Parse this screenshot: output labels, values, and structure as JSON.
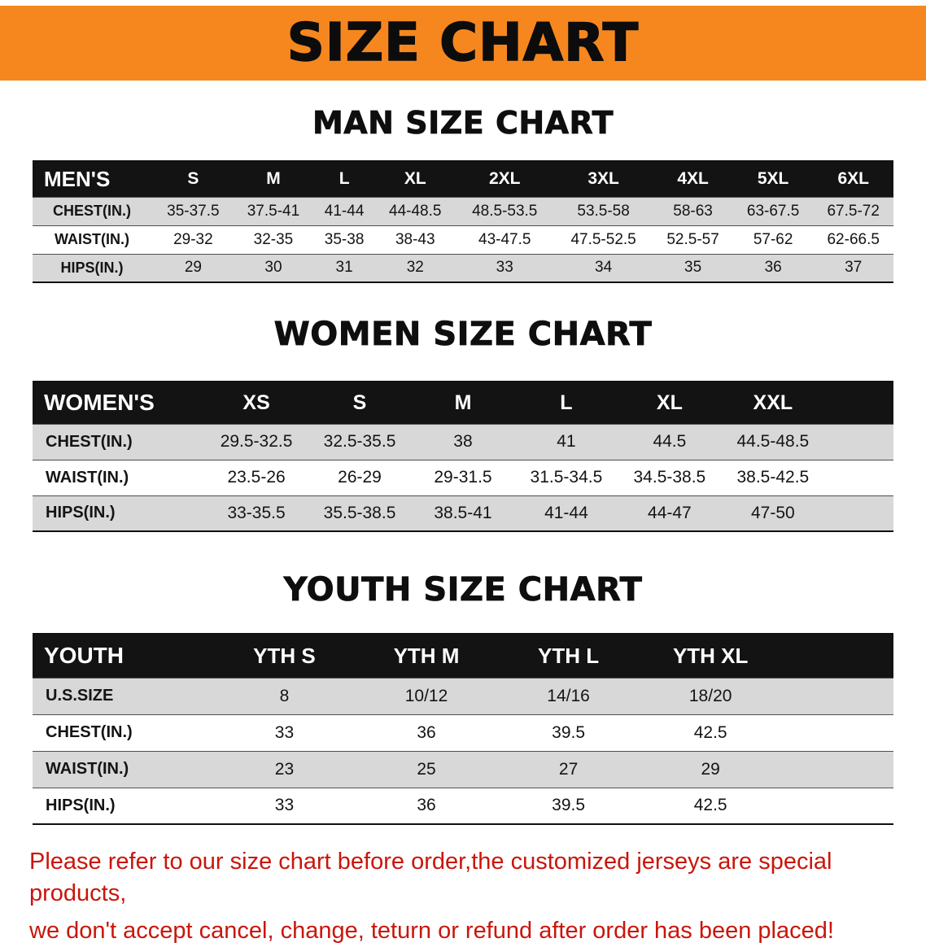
{
  "banner": {
    "title": "SIZE CHART"
  },
  "colors": {
    "banner_bg": "#f6871f",
    "table_header_bg": "#131313",
    "stripe_gray": "#d8d8d8",
    "footer_red": "#c9160c"
  },
  "sections": [
    {
      "heading": "MAN SIZE CHART",
      "table": {
        "header": [
          "MEN'S",
          "S",
          "M",
          "L",
          "XL",
          "2XL",
          "3XL",
          "4XL",
          "5XL",
          "6XL"
        ],
        "rows": [
          [
            "CHEST(IN.)",
            "35-37.5",
            "37.5-41",
            "41-44",
            "44-48.5",
            "48.5-53.5",
            "53.5-58",
            "58-63",
            "63-67.5",
            "67.5-72"
          ],
          [
            "WAIST(IN.)",
            "29-32",
            "32-35",
            "35-38",
            "38-43",
            "43-47.5",
            "47.5-52.5",
            "52.5-57",
            "57-62",
            "62-66.5"
          ],
          [
            "HIPS(IN.)",
            "29",
            "30",
            "31",
            "32",
            "33",
            "34",
            "35",
            "36",
            "37"
          ]
        ]
      }
    },
    {
      "heading": "WOMEN SIZE CHART",
      "table": {
        "header": [
          "WOMEN'S",
          "XS",
          "S",
          "M",
          "L",
          "XL",
          "XXL"
        ],
        "rows": [
          [
            "CHEST(IN.)",
            "29.5-32.5",
            "32.5-35.5",
            "38",
            "41",
            "44.5",
            "44.5-48.5"
          ],
          [
            "WAIST(IN.)",
            "23.5-26",
            "26-29",
            "29-31.5",
            "31.5-34.5",
            "34.5-38.5",
            "38.5-42.5"
          ],
          [
            "HIPS(IN.)",
            "33-35.5",
            "35.5-38.5",
            "38.5-41",
            "41-44",
            "44-47",
            "47-50"
          ]
        ]
      }
    },
    {
      "heading": "YOUTH SIZE CHART",
      "table": {
        "header": [
          "YOUTH",
          "YTH S",
          "YTH M",
          "YTH L",
          "YTH XL"
        ],
        "rows": [
          [
            "U.S.SIZE",
            "8",
            "10/12",
            "14/16",
            "18/20"
          ],
          [
            "CHEST(IN.)",
            "33",
            "36",
            "39.5",
            "42.5"
          ],
          [
            "WAIST(IN.)",
            "23",
            "25",
            "27",
            "29"
          ],
          [
            "HIPS(IN.)",
            "33",
            "36",
            "39.5",
            "42.5"
          ]
        ]
      }
    }
  ],
  "footer": {
    "line1": "Please refer to our size chart before order,the customized jerseys are special products,",
    "line2": "we don't accept cancel, change, teturn or refund after order has been placed!"
  }
}
